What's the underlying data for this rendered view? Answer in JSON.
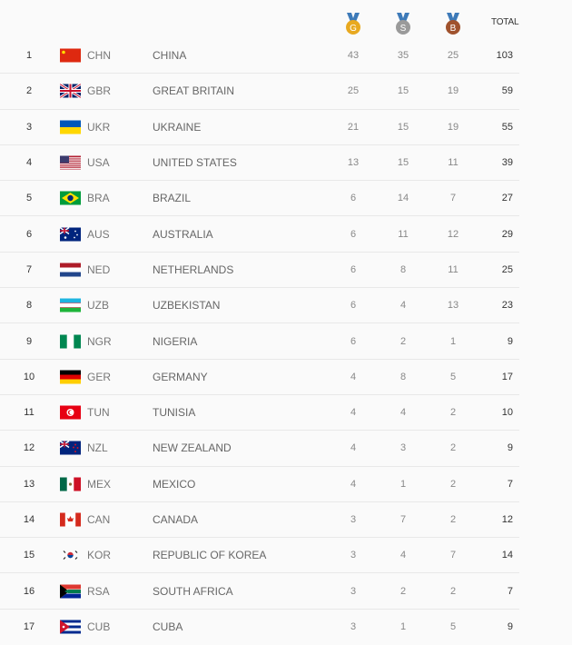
{
  "header": {
    "medals": [
      {
        "letter": "G",
        "color": "#e8a920",
        "icon": "gold-medal-icon"
      },
      {
        "letter": "S",
        "color": "#9a9a9a",
        "icon": "silver-medal-icon"
      },
      {
        "letter": "B",
        "color": "#a0522d",
        "icon": "bronze-medal-icon"
      }
    ],
    "ribbon_color": "#3d7ab8",
    "total_label": "TOTAL"
  },
  "rows": [
    {
      "rank": "1",
      "code": "CHN",
      "name": "CHINA",
      "gold": "43",
      "silver": "35",
      "bronze": "25",
      "total": "103"
    },
    {
      "rank": "2",
      "code": "GBR",
      "name": "GREAT BRITAIN",
      "gold": "25",
      "silver": "15",
      "bronze": "19",
      "total": "59"
    },
    {
      "rank": "3",
      "code": "UKR",
      "name": "UKRAINE",
      "gold": "21",
      "silver": "15",
      "bronze": "19",
      "total": "55"
    },
    {
      "rank": "4",
      "code": "USA",
      "name": "UNITED STATES",
      "gold": "13",
      "silver": "15",
      "bronze": "11",
      "total": "39"
    },
    {
      "rank": "5",
      "code": "BRA",
      "name": "BRAZIL",
      "gold": "6",
      "silver": "14",
      "bronze": "7",
      "total": "27"
    },
    {
      "rank": "6",
      "code": "AUS",
      "name": "AUSTRALIA",
      "gold": "6",
      "silver": "11",
      "bronze": "12",
      "total": "29"
    },
    {
      "rank": "7",
      "code": "NED",
      "name": "NETHERLANDS",
      "gold": "6",
      "silver": "8",
      "bronze": "11",
      "total": "25"
    },
    {
      "rank": "8",
      "code": "UZB",
      "name": "UZBEKISTAN",
      "gold": "6",
      "silver": "4",
      "bronze": "13",
      "total": "23"
    },
    {
      "rank": "9",
      "code": "NGR",
      "name": "NIGERIA",
      "gold": "6",
      "silver": "2",
      "bronze": "1",
      "total": "9"
    },
    {
      "rank": "10",
      "code": "GER",
      "name": "GERMANY",
      "gold": "4",
      "silver": "8",
      "bronze": "5",
      "total": "17"
    },
    {
      "rank": "11",
      "code": "TUN",
      "name": "TUNISIA",
      "gold": "4",
      "silver": "4",
      "bronze": "2",
      "total": "10"
    },
    {
      "rank": "12",
      "code": "NZL",
      "name": "NEW ZEALAND",
      "gold": "4",
      "silver": "3",
      "bronze": "2",
      "total": "9"
    },
    {
      "rank": "13",
      "code": "MEX",
      "name": "MEXICO",
      "gold": "4",
      "silver": "1",
      "bronze": "2",
      "total": "7"
    },
    {
      "rank": "14",
      "code": "CAN",
      "name": "CANADA",
      "gold": "3",
      "silver": "7",
      "bronze": "2",
      "total": "12"
    },
    {
      "rank": "15",
      "code": "KOR",
      "name": "REPUBLIC OF KOREA",
      "gold": "3",
      "silver": "4",
      "bronze": "7",
      "total": "14"
    },
    {
      "rank": "16",
      "code": "RSA",
      "name": "SOUTH AFRICA",
      "gold": "3",
      "silver": "2",
      "bronze": "2",
      "total": "7"
    },
    {
      "rank": "17",
      "code": "CUB",
      "name": "CUBA",
      "gold": "3",
      "silver": "1",
      "bronze": "5",
      "total": "9"
    }
  ]
}
